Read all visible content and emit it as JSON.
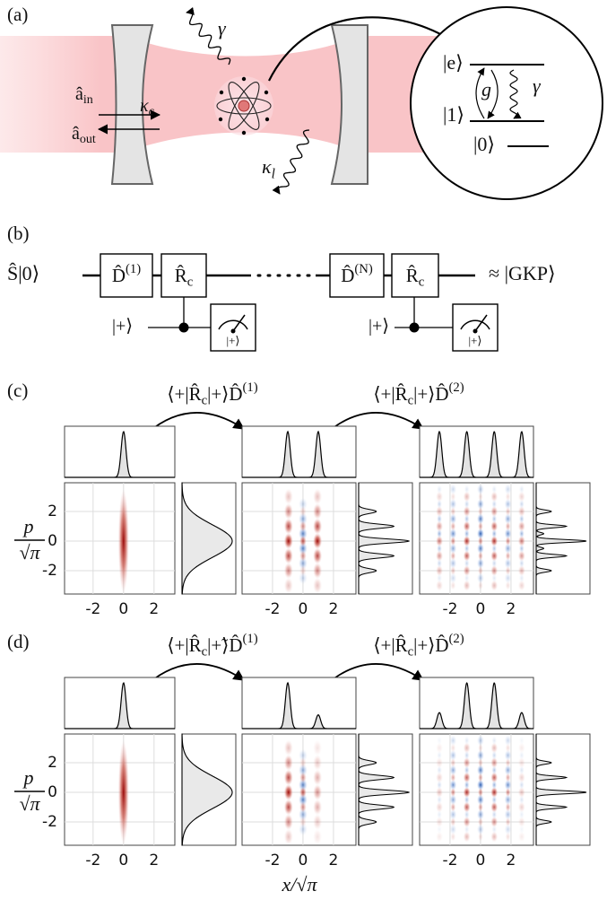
{
  "panel_a": {
    "label": "(a)",
    "photon_emission": "γ",
    "input_mode": [
      "â",
      {
        "sub": "in"
      }
    ],
    "output_mode": [
      "â",
      {
        "sub": "out"
      }
    ],
    "mirror_loss": [
      "κ",
      {
        "sub": "c"
      }
    ],
    "scatter_loss": [
      "κ",
      {
        "sub": "l"
      }
    ],
    "inset": {
      "excited": "|e⟩",
      "level_one": "|1⟩",
      "level_zero": "|0⟩",
      "coupling": "g",
      "decay": "γ"
    }
  },
  "panel_b": {
    "label": "(b)",
    "input_state": "Ŝ|0⟩",
    "gates": [
      [
        "D̂",
        {
          "sup": "(1)"
        }
      ],
      [
        "R̂",
        {
          "sub": "c"
        }
      ],
      [
        "D̂",
        {
          "sup": "(N)"
        }
      ],
      [
        "R̂",
        {
          "sub": "c"
        }
      ]
    ],
    "output_state": "≈ |GKP⟩",
    "ancillas": [
      "|+⟩",
      "|+⟩"
    ],
    "measurements": [
      "|+⟩",
      "|+⟩"
    ]
  },
  "panel_c": {
    "label": "(c)",
    "steps": [
      [
        "⟨+|R̂",
        {
          "sub": "c"
        },
        "|+⟩D̂",
        {
          "sup": "(1)"
        }
      ],
      [
        "⟨+|R̂",
        {
          "sub": "c"
        },
        "|+⟩D̂",
        {
          "sup": "(2)"
        }
      ]
    ]
  },
  "panel_d": {
    "label": "(d)",
    "steps": [
      [
        "⟨+|R̂",
        {
          "sub": "c"
        },
        "|+̃⟩D̂",
        {
          "sup": "(1)"
        }
      ],
      [
        "⟨+|R̂",
        {
          "sub": "c"
        },
        "|+⟩D̂",
        {
          "sup": "(2)"
        }
      ]
    ]
  },
  "axes": {
    "xticks": [
      -2,
      0,
      2
    ],
    "yticks": [
      -2,
      0,
      2
    ],
    "ylabel": {
      "num": "p",
      "den": "√π"
    },
    "xlabel": "x/√π"
  }
}
